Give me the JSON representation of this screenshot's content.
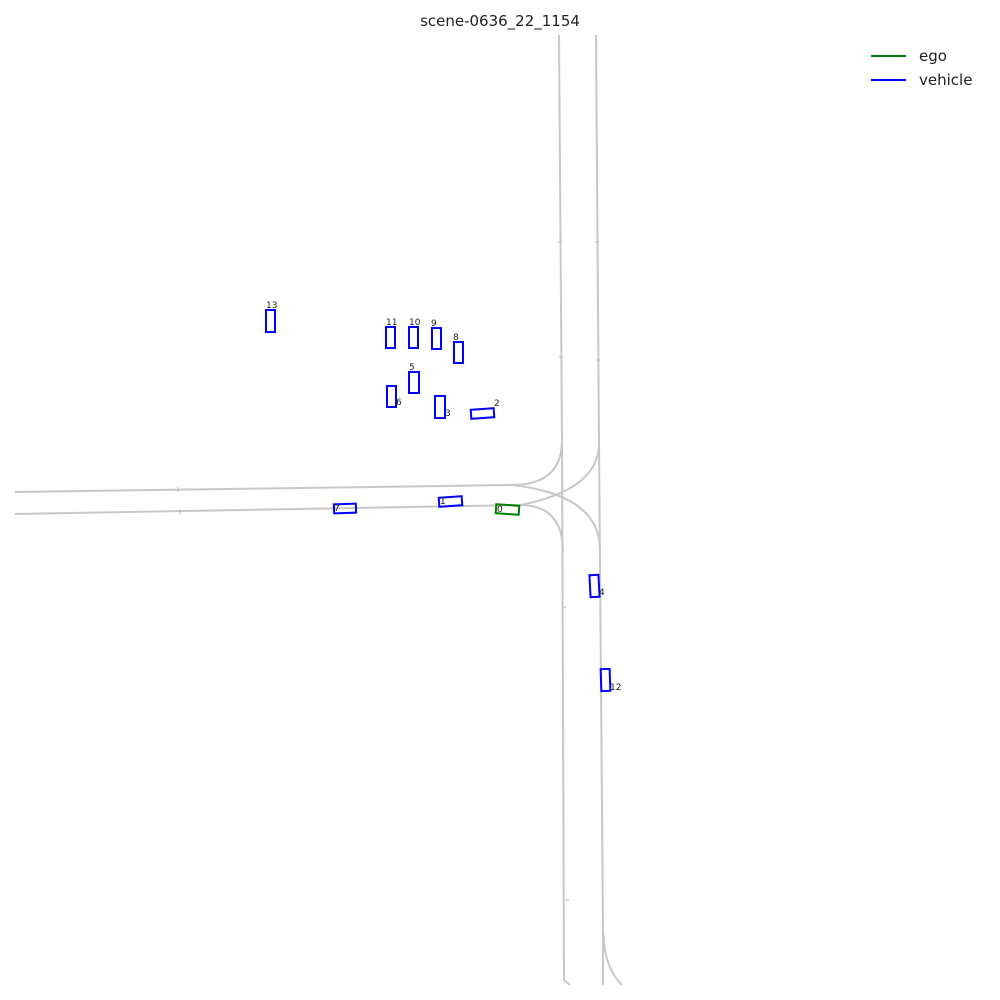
{
  "title": "scene-0636_22_1154",
  "legend": [
    {
      "label": "ego",
      "color": "#008000"
    },
    {
      "label": "vehicle",
      "color": "#0000ff"
    }
  ],
  "agents": [
    {
      "id": "0",
      "type": "ego"
    },
    {
      "id": "1",
      "type": "vehicle"
    },
    {
      "id": "2",
      "type": "vehicle"
    },
    {
      "id": "3",
      "type": "vehicle"
    },
    {
      "id": "4",
      "type": "vehicle"
    },
    {
      "id": "5",
      "type": "vehicle"
    },
    {
      "id": "6",
      "type": "vehicle"
    },
    {
      "id": "7",
      "type": "vehicle"
    },
    {
      "id": "8",
      "type": "vehicle"
    },
    {
      "id": "9",
      "type": "vehicle"
    },
    {
      "id": "10",
      "type": "vehicle"
    },
    {
      "id": "11",
      "type": "vehicle"
    },
    {
      "id": "12",
      "type": "vehicle"
    },
    {
      "id": "13",
      "type": "vehicle"
    }
  ]
}
